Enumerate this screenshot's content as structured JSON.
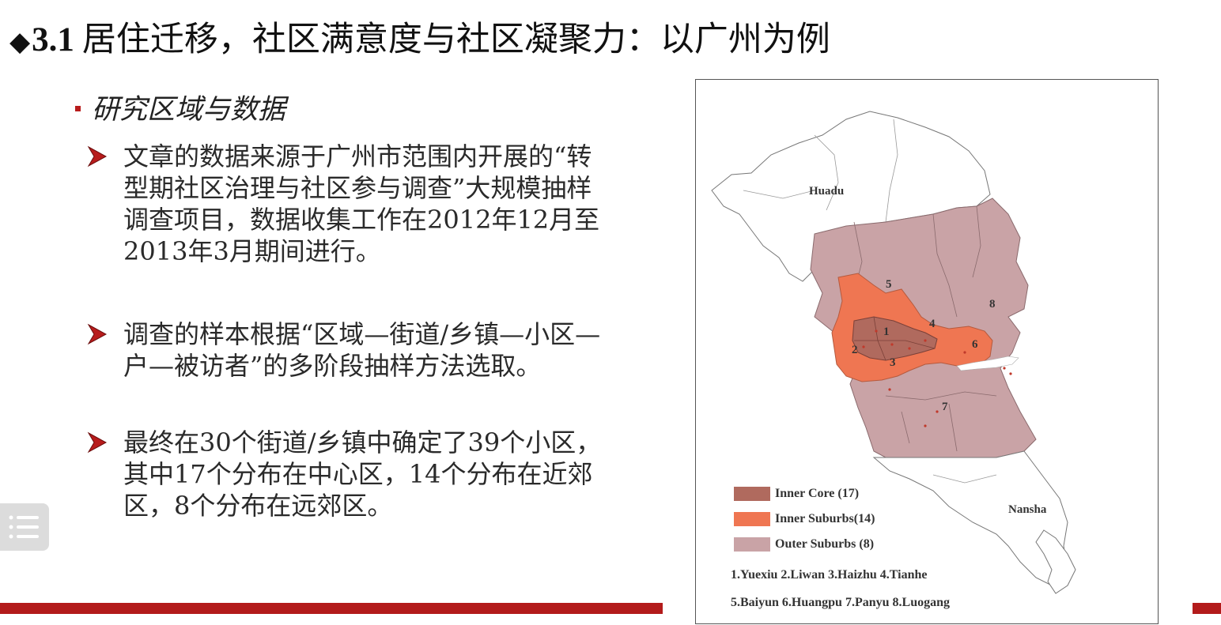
{
  "slide": {
    "title_number": "3.1",
    "title_text": "居住迁移，社区满意度与社区凝聚力：以广州为例",
    "subheading": "研究区域与数据",
    "bullets": [
      {
        "text": "文章的数据来源于广州市范围内开展的“转型期社区治理与社区参与调查”大规模抽样调查项目，数据收集工作在2012年12月至2013年3月期间进行。"
      },
      {
        "text": "调查的样本根据“区域—街道/乡镇—小区—户—被访者”的多阶段抽样方法选取。"
      },
      {
        "text": "最终在30个街道/乡镇中确定了39个小区，其中17个分布在中心区，14个分布在近郊区，8个分布在远郊区。"
      }
    ]
  },
  "map": {
    "labels": {
      "huadu": "Huadu",
      "nansha": "Nansha"
    },
    "district_numbers": [
      "1",
      "2",
      "3",
      "4",
      "5",
      "6",
      "7",
      "8"
    ],
    "legend": [
      {
        "label": "Inner Core (17)",
        "color": "#b06a5e"
      },
      {
        "label": "Inner Suburbs(14)",
        "color": "#ef7652"
      },
      {
        "label": "Outer Suburbs (8)",
        "color": "#c9a3a6"
      }
    ],
    "district_list": [
      "1.Yuexiu 2.Liwan 3.Haizhu 4.Tianhe",
      "5.Baiyun 6.Huangpu 7.Panyu 8.Luogang"
    ]
  },
  "colors": {
    "accent_red": "#b31b1b",
    "outer_suburbs": "#c9a3a6",
    "inner_suburbs": "#ef7652",
    "inner_core": "#b06a5e"
  },
  "icons": {
    "title_marker": "black-diamond-icon",
    "bullet_marker": "arrowhead-icon",
    "menu": "menu-list-icon"
  }
}
